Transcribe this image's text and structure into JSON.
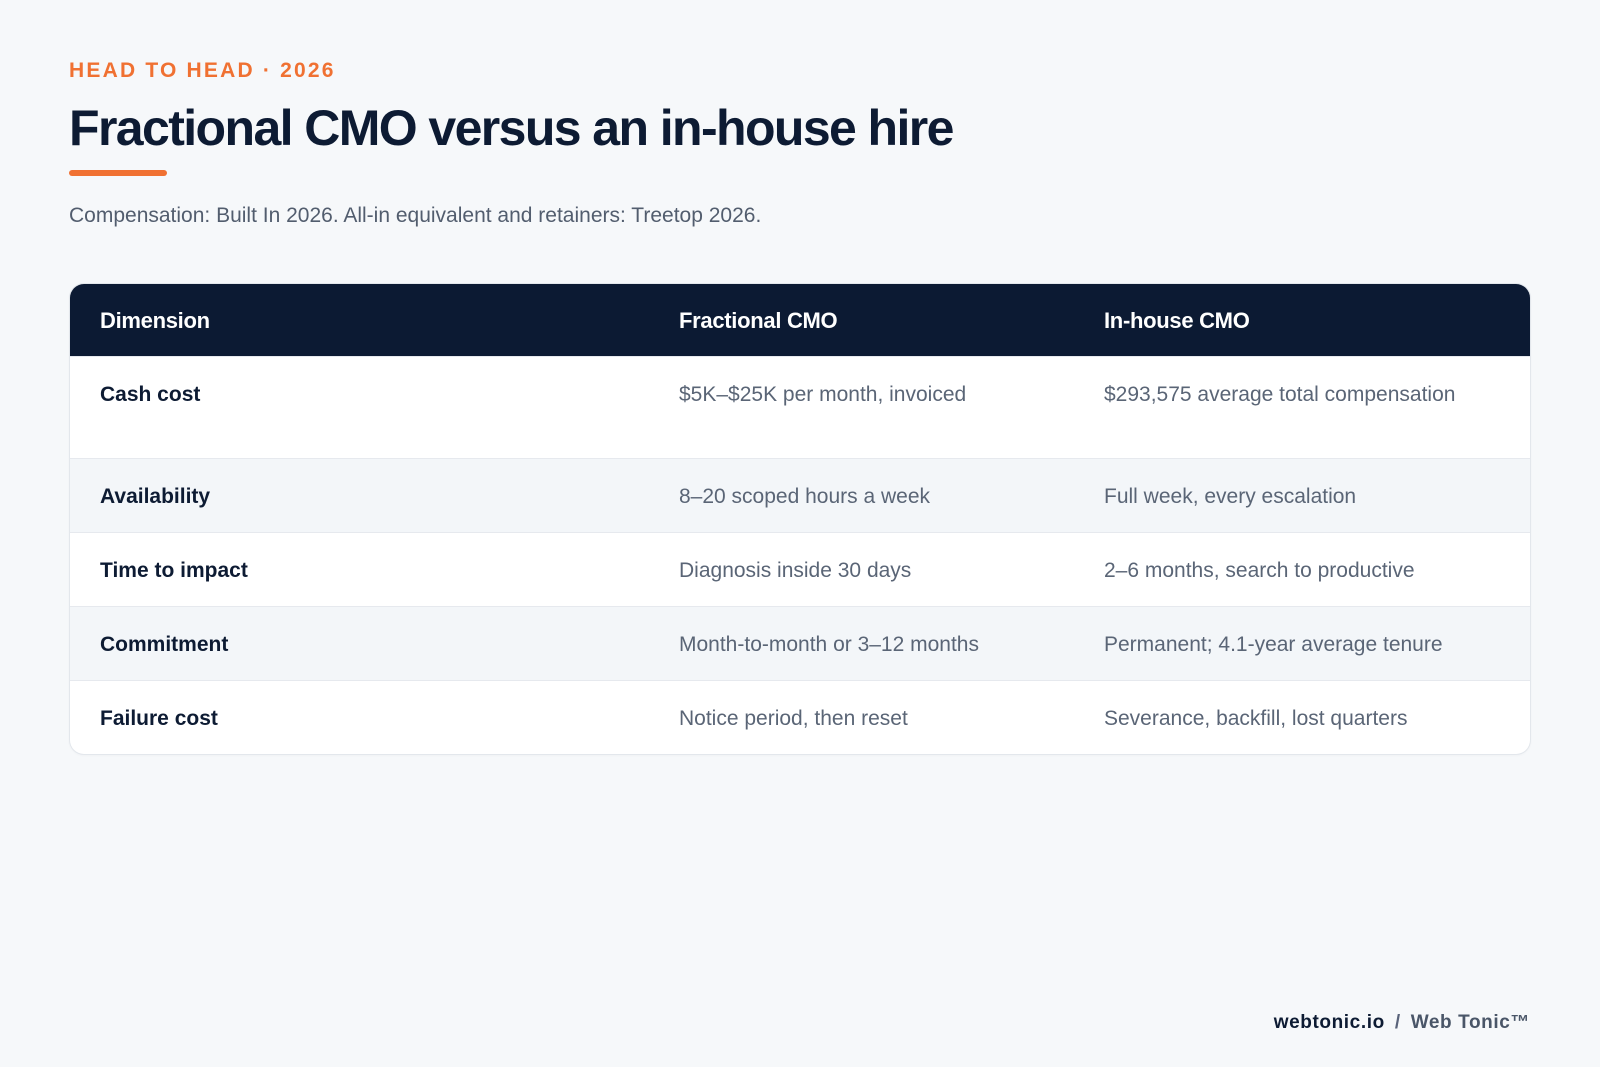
{
  "header": {
    "eyebrow": "HEAD TO HEAD · 2026",
    "title": "Fractional CMO versus an in-house hire",
    "subtitle": "Compensation: Built In 2026. All-in equivalent and retainers: Treetop 2026."
  },
  "table": {
    "columns": [
      "Dimension",
      "Fractional CMO",
      "In-house CMO"
    ],
    "rows": [
      {
        "dimension": "Cash cost",
        "fractional": "$5K–$25K per month, invoiced",
        "inhouse": "$293,575 average total compensation"
      },
      {
        "dimension": "Availability",
        "fractional": "8–20 scoped hours a week",
        "inhouse": "Full week, every escalation"
      },
      {
        "dimension": "Time to impact",
        "fractional": "Diagnosis inside 30 days",
        "inhouse": "2–6 months, search to productive"
      },
      {
        "dimension": "Commitment",
        "fractional": "Month-to-month or 3–12 months",
        "inhouse": "Permanent; 4.1-year average tenure"
      },
      {
        "dimension": "Failure cost",
        "fractional": "Notice period, then reset",
        "inhouse": "Severance, backfill, lost quarters"
      }
    ]
  },
  "footer": {
    "domain": "webtonic.io",
    "separator": "/",
    "brand": "Web Tonic™"
  },
  "colors": {
    "accent": "#f07132",
    "navy": "#0c1a33",
    "background": "#f6f8fa"
  }
}
